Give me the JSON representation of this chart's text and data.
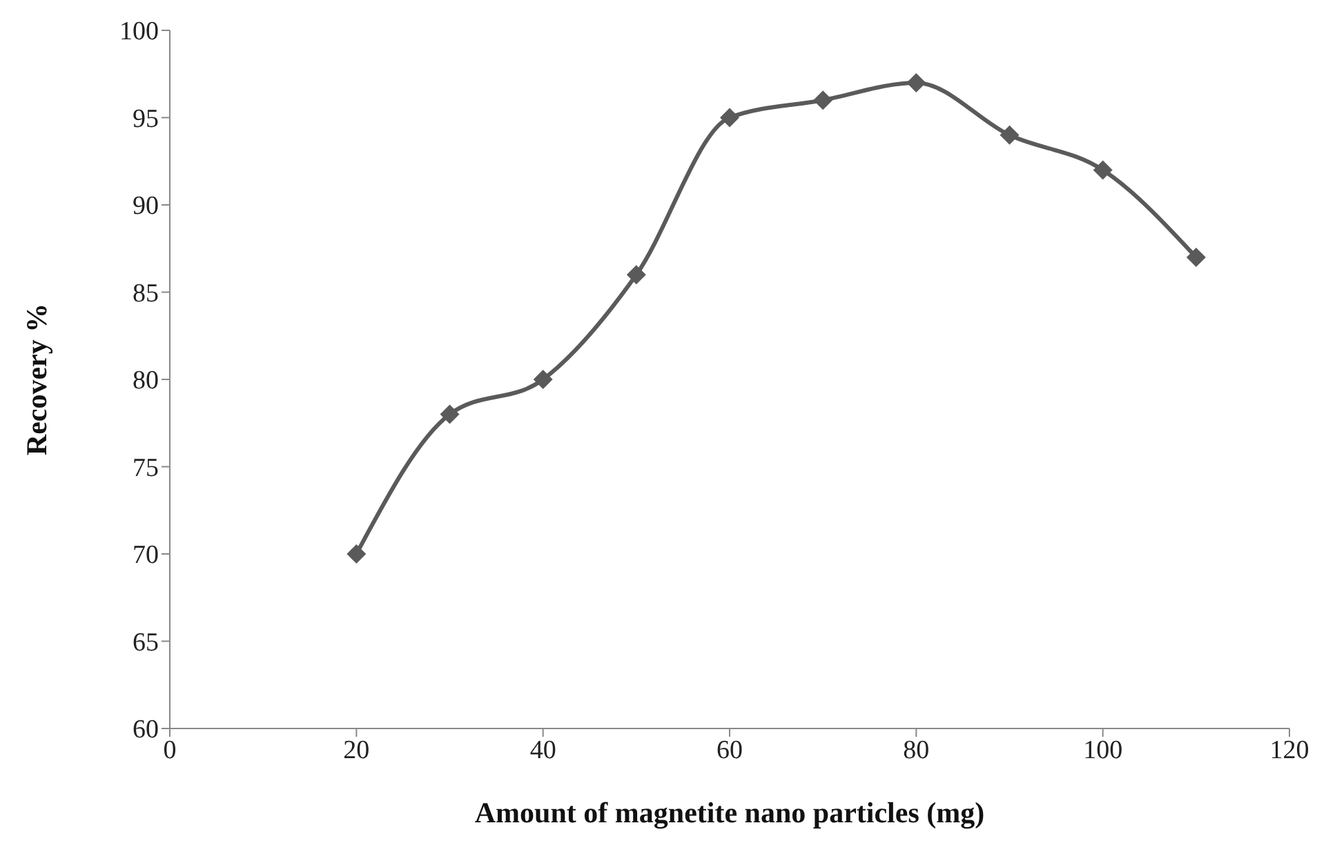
{
  "chart_data": {
    "type": "line",
    "xlabel": "Amount of magnetite nano particles (mg)",
    "ylabel": "Recovery %",
    "x": [
      20,
      30,
      40,
      50,
      60,
      70,
      80,
      90,
      100,
      110
    ],
    "series": [
      {
        "color": "#5a5a5a",
        "values": [
          70,
          78,
          80,
          86,
          95,
          96,
          97,
          94,
          92,
          87
        ]
      }
    ],
    "xlim": [
      0,
      120
    ],
    "xticks": [
      0,
      20,
      40,
      60,
      80,
      100,
      120
    ],
    "ylim": [
      60,
      100
    ],
    "yticks": [
      60,
      65,
      70,
      75,
      80,
      85,
      90,
      95,
      100
    ],
    "grid": false,
    "legend": false,
    "marker": "diamond",
    "line_style": "solid"
  }
}
